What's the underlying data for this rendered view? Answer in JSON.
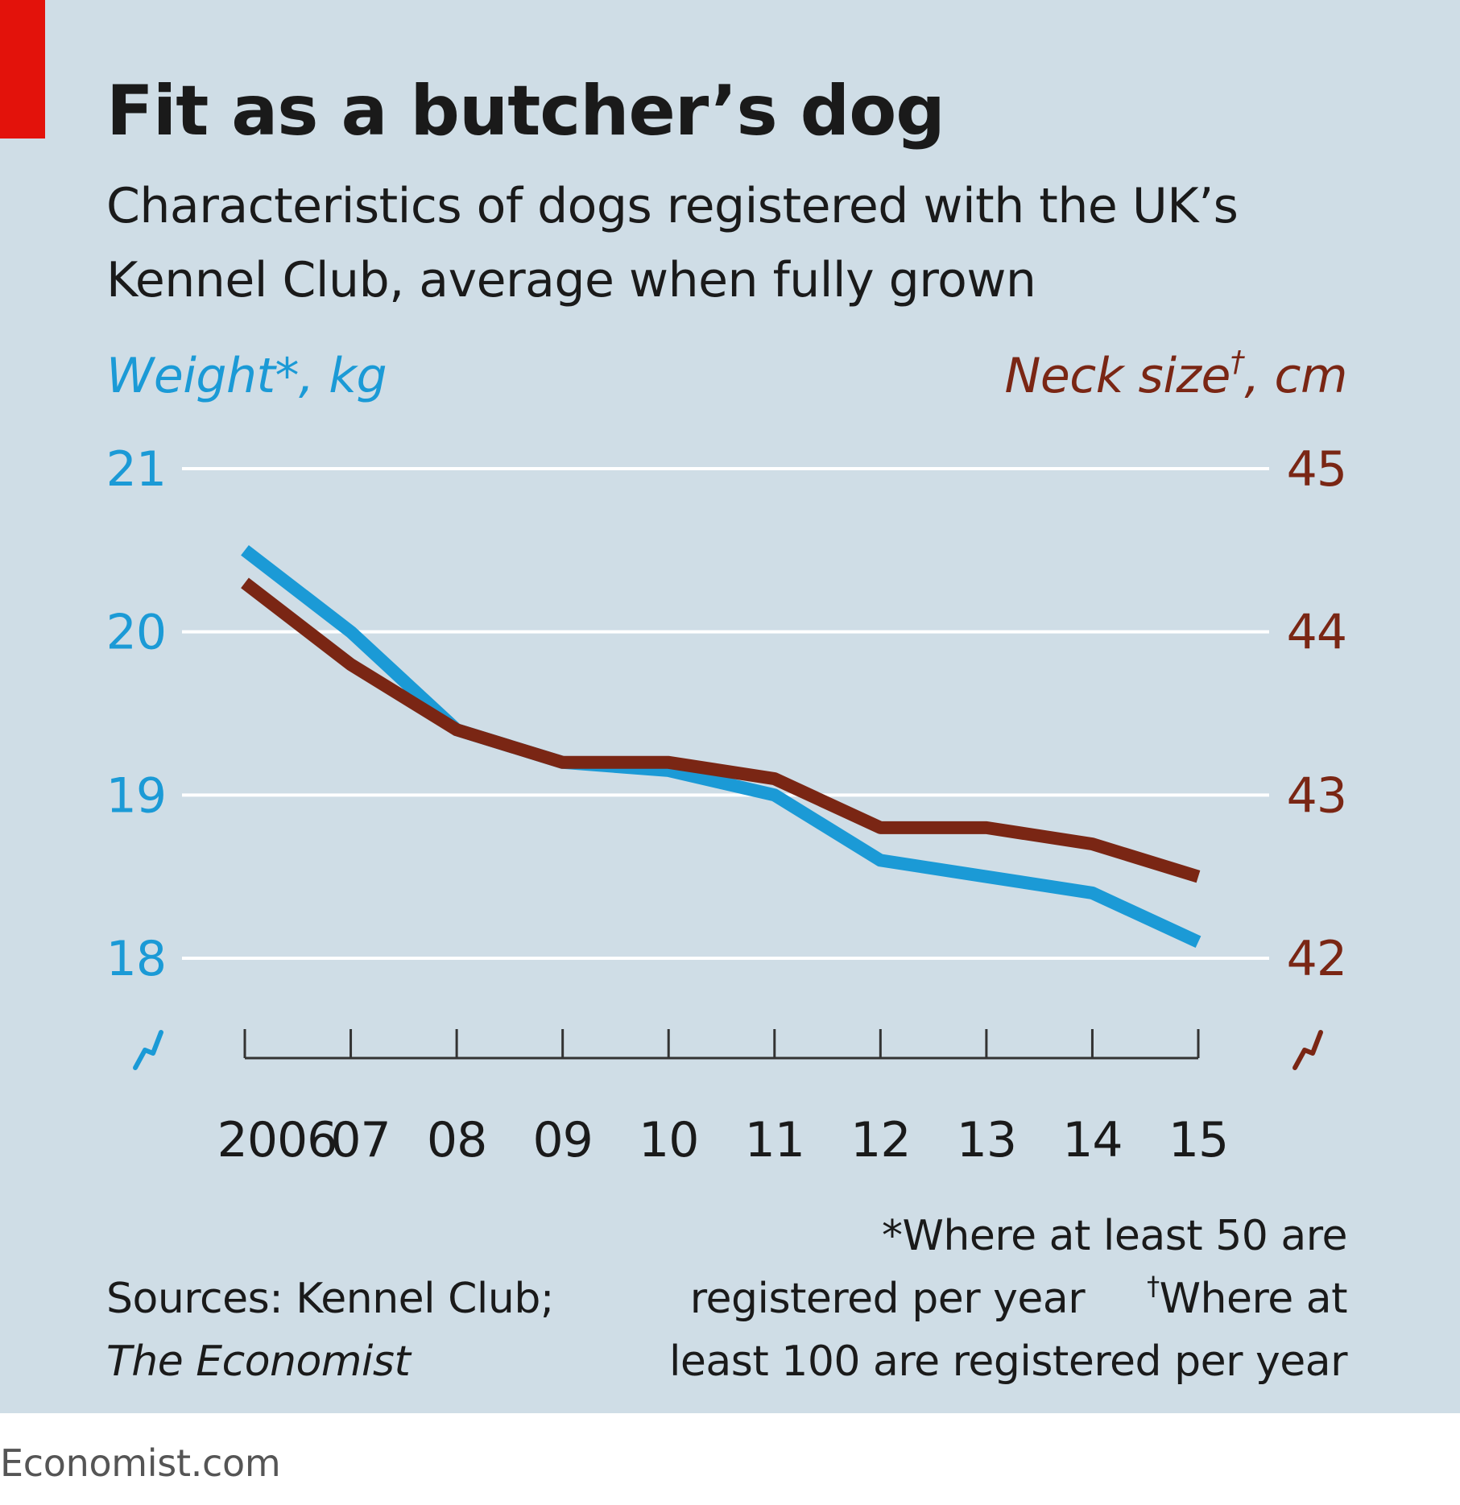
{
  "title": "Fit as a butcher’s dog",
  "subtitle": "Characteristics of dogs registered with the UK’s Kennel Club, average when fully grown",
  "left_axis_label": "Weight*, kg",
  "right_axis_label_text": "Neck size",
  "right_axis_label_mark": "†",
  "right_axis_label_unit": ", cm",
  "sources_label": "Sources: Kennel Club;",
  "sources_publication": "The Economist",
  "note_weight": "*Where at least 50 are registered per year",
  "note_weight_line1": "*Where at least 50 are",
  "note_weight_line2": "registered per year",
  "note_neck_mark": "†",
  "note_neck_line1": "Where at",
  "note_neck_line2": "least 100 are registered per year",
  "brand": "Economist.com",
  "colors": {
    "weight": "#1b9ad6",
    "neck": "#7a2614",
    "background": "#cfdde6",
    "accent": "#e3120b"
  },
  "chart_data": {
    "type": "line",
    "title": "Fit as a butcher’s dog",
    "x": [
      2006,
      2007,
      2008,
      2009,
      2010,
      2011,
      2012,
      2013,
      2014,
      2015
    ],
    "x_tick_labels": [
      "2006",
      "07",
      "08",
      "09",
      "10",
      "11",
      "12",
      "13",
      "14",
      "15"
    ],
    "y_left": {
      "label": "Weight*, kg",
      "ticks": [
        "21",
        "20",
        "19",
        "18"
      ],
      "range": [
        18,
        21
      ],
      "broken_axis": true
    },
    "y_right": {
      "label": "Neck size†, cm",
      "ticks": [
        "45",
        "44",
        "43",
        "42"
      ],
      "range": [
        42,
        45
      ],
      "broken_axis": true
    },
    "grid": "horizontal",
    "series": [
      {
        "name": "Weight*, kg",
        "axis": "left",
        "color": "#1b9ad6",
        "values": [
          20.5,
          20.0,
          19.4,
          19.2,
          19.15,
          19.0,
          18.6,
          18.5,
          18.4,
          18.1
        ]
      },
      {
        "name": "Neck size†, cm",
        "axis": "right",
        "color": "#7a2614",
        "values": [
          44.3,
          43.8,
          43.4,
          43.2,
          43.2,
          43.1,
          42.8,
          42.8,
          42.7,
          42.5
        ]
      }
    ]
  }
}
